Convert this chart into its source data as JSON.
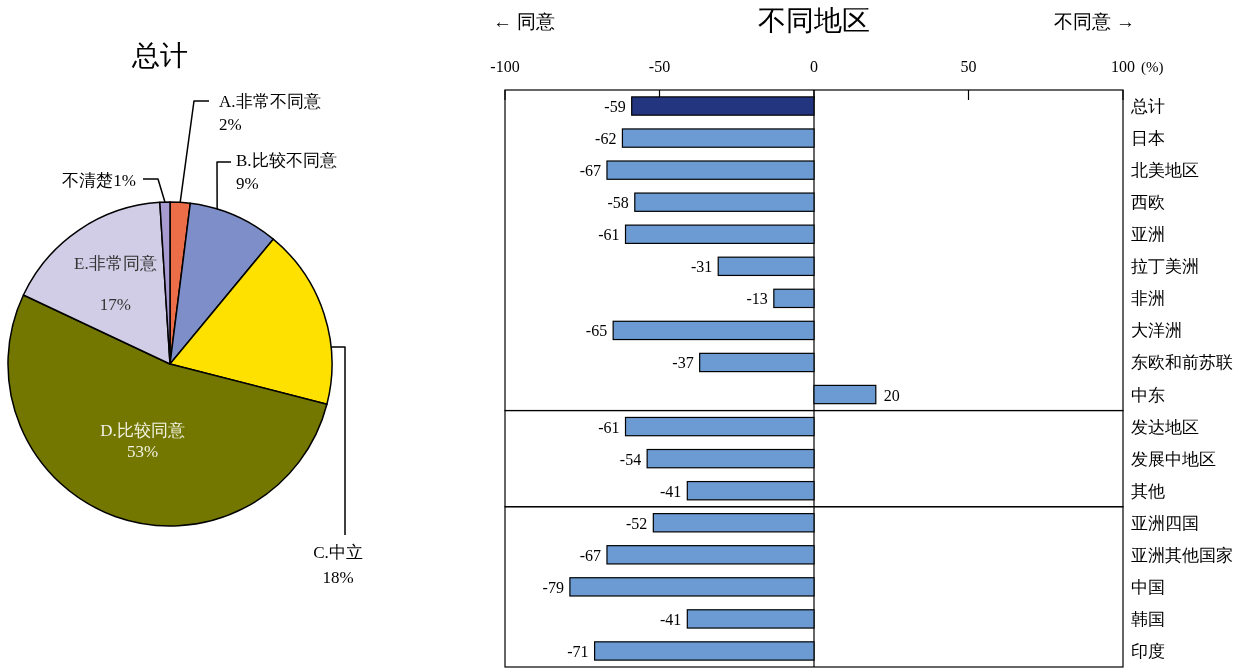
{
  "chart_data": [
    {
      "type": "pie",
      "title": "总计",
      "categories": [
        "A.非常不同意",
        "B.比较不同意",
        "C.中立",
        "D.比较同意",
        "E.非常同意",
        "不清楚"
      ],
      "values": [
        2,
        9,
        18,
        53,
        17,
        1
      ],
      "colors": [
        "#ec6e48",
        "#7e8ec8",
        "#ffe100",
        "#737700",
        "#d1cde6",
        "#a79bd1"
      ],
      "value_labels": [
        "2%",
        "9%",
        "18%",
        "53%",
        "17%",
        "1%"
      ]
    },
    {
      "type": "bar",
      "orientation": "horizontal",
      "title": "不同地区",
      "xlabel": "(%)",
      "annotations": [
        "← 同意",
        "不同意 →"
      ],
      "categories": [
        "总计",
        "日本",
        "北美地区",
        "西欧",
        "亚洲",
        "拉丁美洲",
        "非洲",
        "大洋洲",
        "东欧和前苏联",
        "中东"
      ],
      "values": [
        -59,
        -62,
        -67,
        -58,
        -61,
        -31,
        -13,
        -65,
        -37,
        20
      ],
      "colors": [
        "#243580",
        "#6b9bd2",
        "#6b9bd2",
        "#6b9bd2",
        "#6b9bd2",
        "#6b9bd2",
        "#6b9bd2",
        "#6b9bd2",
        "#6b9bd2",
        "#6b9bd2"
      ],
      "xlim": [
        -100,
        100
      ],
      "xticks": [
        -100,
        -50,
        0,
        50,
        100
      ],
      "data_labels": true
    },
    {
      "type": "bar",
      "orientation": "horizontal",
      "categories": [
        "发达地区",
        "发展中地区",
        "其他"
      ],
      "values": [
        -61,
        -54,
        -41
      ],
      "color": "#6b9bd2",
      "xlim": [
        -100,
        100
      ],
      "tick_labels": "y",
      "data_labels": true
    },
    {
      "type": "bar",
      "orientation": "horizontal",
      "categories": [
        "亚洲四国",
        "亚洲其他国家",
        "中国",
        "韩国",
        "印度"
      ],
      "values": [
        -52,
        -67,
        -79,
        -41,
        -71
      ],
      "color": "#6b9bd2",
      "xlim": [
        -100,
        100
      ],
      "tick_labels": "y",
      "data_labels": true
    }
  ]
}
